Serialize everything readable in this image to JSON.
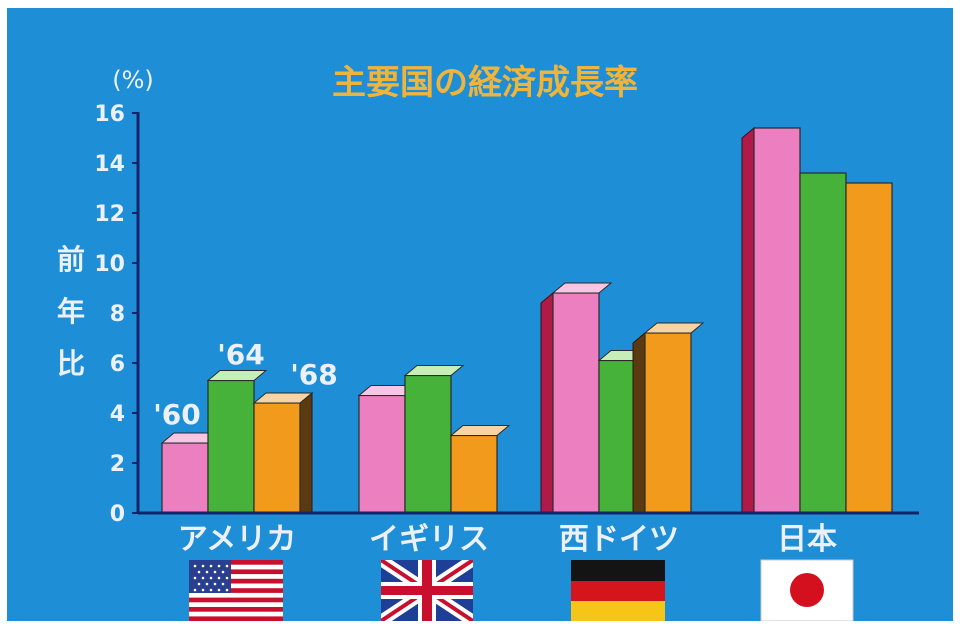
{
  "chart_data": {
    "type": "bar",
    "title": "主要国の経済成長率",
    "unit": "(%)",
    "ylabel": "前年比",
    "ylim": [
      0,
      16
    ],
    "yticks": [
      0,
      2,
      4,
      6,
      8,
      10,
      12,
      14,
      16
    ],
    "categories": [
      "アメリカ",
      "イギリス",
      "西ドイツ",
      "日本"
    ],
    "series": [
      {
        "name": "'60",
        "values": [
          2.8,
          4.7,
          8.8,
          15.4
        ]
      },
      {
        "name": "'64",
        "values": [
          5.3,
          5.5,
          6.1,
          13.6
        ]
      },
      {
        "name": "'68",
        "values": [
          4.4,
          3.1,
          7.2,
          13.2
        ]
      }
    ],
    "series_colors": [
      "#ec7fc0",
      "#46b23a",
      "#f29a1c"
    ],
    "flags": [
      "usa-flag-icon",
      "uk-flag-icon",
      "west-germany-flag-icon",
      "japan-flag-icon"
    ],
    "colors": {
      "background": "#1e8fd6",
      "title": "#f0b43a",
      "axis_text": "#eef0f8",
      "bar_side_left": "#b01a48",
      "bar_side_right": "#5a3a10"
    }
  }
}
